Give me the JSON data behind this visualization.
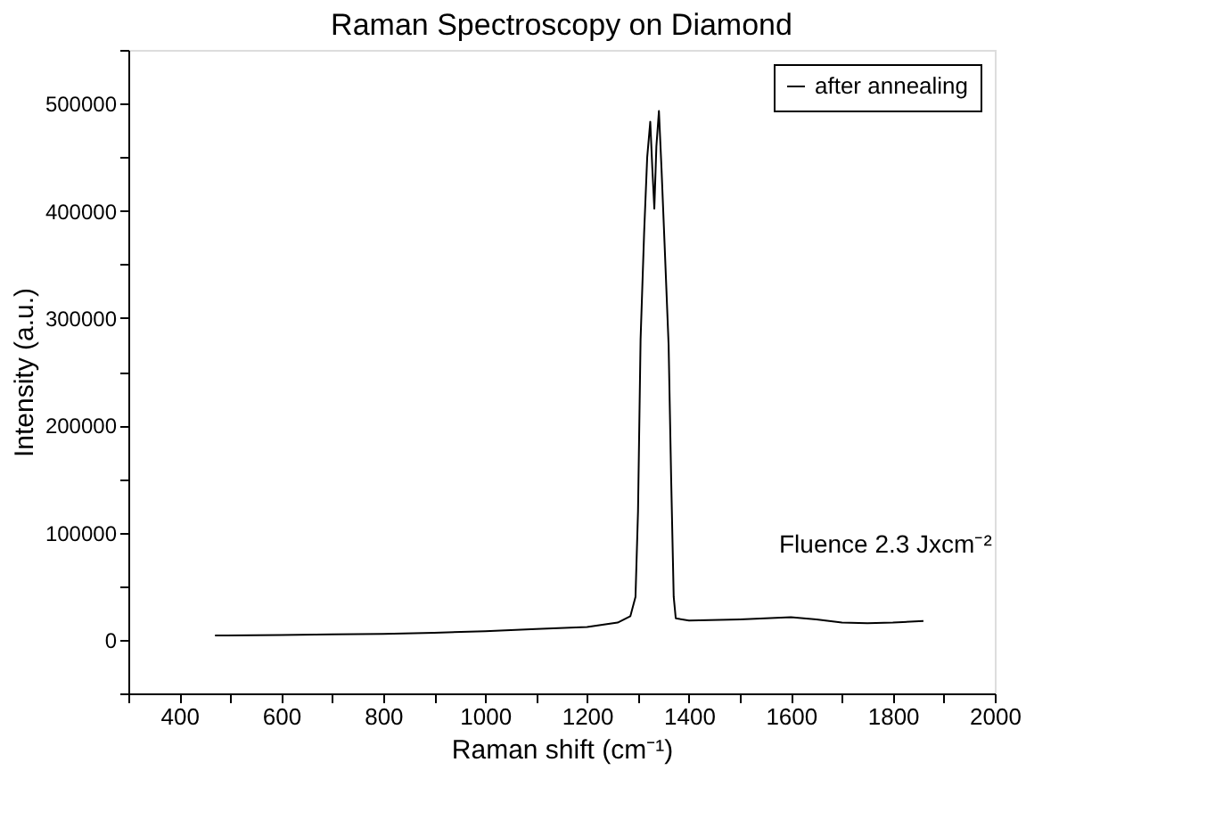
{
  "chart_data": {
    "type": "line",
    "title": "Raman Spectroscopy on Diamond",
    "xlabel": "Raman shift (cm⁻¹)",
    "ylabel": "Intensity (a.u.)",
    "annotations": [
      "Fluence 2.3 Jxcm⁻²"
    ],
    "x": [
      470,
      600,
      700,
      800,
      900,
      1000,
      1100,
      1200,
      1260,
      1285,
      1295,
      1300,
      1305,
      1312,
      1318,
      1324,
      1328,
      1332,
      1336,
      1341,
      1346,
      1352,
      1360,
      1365,
      1370,
      1374,
      1400,
      1500,
      1550,
      1600,
      1650,
      1700,
      1750,
      1800,
      1860
    ],
    "series": [
      {
        "name": "after annealing",
        "color": "#000000",
        "values": [
          4000,
          4500,
          5000,
          5500,
          6500,
          8000,
          10000,
          12000,
          16000,
          22000,
          40000,
          120000,
          280000,
          380000,
          450000,
          483000,
          440000,
          402000,
          460000,
          493000,
          440000,
          370000,
          275000,
          150000,
          40000,
          20000,
          18000,
          19000,
          20000,
          21000,
          19000,
          16000,
          15500,
          16000,
          17500
        ]
      }
    ],
    "xlim": [
      300,
      2000
    ],
    "xticks": [
      {
        "value": 300,
        "label": null
      },
      400,
      {
        "value": 500,
        "label": null
      },
      600,
      {
        "value": 700,
        "label": null
      },
      800,
      {
        "value": 900,
        "label": null
      },
      1000,
      {
        "value": 1100,
        "label": null
      },
      1200,
      {
        "value": 1300,
        "label": null
      },
      1400,
      {
        "value": 1500,
        "label": null
      },
      1600,
      {
        "value": 1700,
        "label": null
      },
      1800,
      {
        "value": 1900,
        "label": null
      },
      2000
    ],
    "ylim": [
      -50000,
      550000
    ],
    "yticks": [
      {
        "value": -50000,
        "label": null
      },
      0,
      {
        "value": 50000,
        "label": null
      },
      100000,
      {
        "value": 150000,
        "label": null
      },
      200000,
      {
        "value": 250000,
        "label": null
      },
      300000,
      {
        "value": 350000,
        "label": null
      },
      400000,
      {
        "value": 450000,
        "label": null
      },
      500000,
      {
        "value": 550000,
        "label": null
      }
    ],
    "grid": false,
    "legend": "top right",
    "marker": "none",
    "line_style": "solid"
  }
}
